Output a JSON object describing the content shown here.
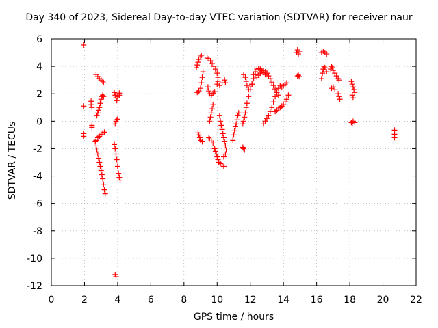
{
  "chart_data": {
    "type": "scatter",
    "title": "Day 340 of 2023, Sidereal Day-to-day VTEC variation (SDTVAR) for receiver naur",
    "xlabel": "GPS time / hours",
    "ylabel": "SDTVAR / TECUs",
    "xlim": [
      0,
      22
    ],
    "ylim": [
      -12,
      6
    ],
    "xticks": [
      0,
      2,
      4,
      6,
      8,
      10,
      12,
      14,
      16,
      18,
      20,
      22
    ],
    "yticks": [
      -12,
      -10,
      -8,
      -6,
      -4,
      -2,
      0,
      2,
      4,
      6
    ],
    "grid": true,
    "marker": "+",
    "color": "#ff0000",
    "series": [
      {
        "name": "SDTVAR",
        "points": [
          [
            1.95,
            5.55
          ],
          [
            1.95,
            1.1
          ],
          [
            1.95,
            -0.9
          ],
          [
            1.95,
            -1.1
          ],
          [
            2.4,
            1.45
          ],
          [
            2.4,
            1.2
          ],
          [
            2.45,
            1.0
          ],
          [
            2.45,
            -0.3
          ],
          [
            2.45,
            -0.45
          ],
          [
            2.7,
            3.4
          ],
          [
            2.8,
            3.25
          ],
          [
            2.9,
            3.1
          ],
          [
            3.0,
            3.0
          ],
          [
            3.1,
            2.9
          ],
          [
            3.15,
            2.8
          ],
          [
            2.75,
            0.4
          ],
          [
            2.8,
            0.6
          ],
          [
            2.85,
            0.8
          ],
          [
            2.9,
            1.0
          ],
          [
            2.95,
            1.3
          ],
          [
            3.0,
            1.6
          ],
          [
            3.05,
            1.8
          ],
          [
            3.1,
            1.9
          ],
          [
            3.15,
            1.8
          ],
          [
            2.65,
            -1.5
          ],
          [
            2.7,
            -1.4
          ],
          [
            2.8,
            -1.2
          ],
          [
            2.9,
            -1.1
          ],
          [
            3.0,
            -0.95
          ],
          [
            3.1,
            -0.85
          ],
          [
            3.2,
            -0.8
          ],
          [
            2.7,
            -1.8
          ],
          [
            2.75,
            -2.1
          ],
          [
            2.8,
            -2.4
          ],
          [
            2.85,
            -2.7
          ],
          [
            2.9,
            -3.0
          ],
          [
            2.95,
            -3.3
          ],
          [
            3.0,
            -3.6
          ],
          [
            3.05,
            -3.9
          ],
          [
            3.1,
            -4.2
          ],
          [
            3.15,
            -4.6
          ],
          [
            3.2,
            -5.0
          ],
          [
            3.25,
            -5.3
          ],
          [
            3.8,
            2.1
          ],
          [
            3.85,
            1.9
          ],
          [
            3.9,
            1.7
          ],
          [
            3.95,
            1.5
          ],
          [
            4.0,
            1.8
          ],
          [
            4.1,
            2.05
          ],
          [
            4.1,
            1.9
          ],
          [
            3.85,
            -0.2
          ],
          [
            3.9,
            0.0
          ],
          [
            3.95,
            0.1
          ],
          [
            4.0,
            0.15
          ],
          [
            3.8,
            -1.7
          ],
          [
            3.85,
            -2.0
          ],
          [
            3.9,
            -2.4
          ],
          [
            3.95,
            -2.8
          ],
          [
            4.0,
            -3.3
          ],
          [
            4.05,
            -3.8
          ],
          [
            4.1,
            -4.1
          ],
          [
            4.15,
            -4.3
          ],
          [
            3.85,
            -11.2
          ],
          [
            3.9,
            -11.35
          ],
          [
            8.75,
            3.9
          ],
          [
            8.8,
            4.1
          ],
          [
            8.85,
            4.3
          ],
          [
            8.9,
            4.5
          ],
          [
            9.0,
            4.7
          ],
          [
            9.05,
            4.8
          ],
          [
            8.8,
            2.1
          ],
          [
            8.9,
            2.2
          ],
          [
            9.0,
            2.4
          ],
          [
            9.05,
            2.8
          ],
          [
            9.1,
            3.2
          ],
          [
            9.15,
            3.6
          ],
          [
            8.85,
            -0.85
          ],
          [
            8.9,
            -1.0
          ],
          [
            8.95,
            -1.2
          ],
          [
            9.0,
            -1.4
          ],
          [
            9.1,
            -1.5
          ],
          [
            9.4,
            4.6
          ],
          [
            9.5,
            4.55
          ],
          [
            9.6,
            4.4
          ],
          [
            9.7,
            4.2
          ],
          [
            9.8,
            4.0
          ],
          [
            9.9,
            3.8
          ],
          [
            10.0,
            3.5
          ],
          [
            10.05,
            3.2
          ],
          [
            9.45,
            2.5
          ],
          [
            9.5,
            2.2
          ],
          [
            9.55,
            2.0
          ],
          [
            9.65,
            1.9
          ],
          [
            9.75,
            2.05
          ],
          [
            9.85,
            2.15
          ],
          [
            9.55,
            0.0
          ],
          [
            9.6,
            0.3
          ],
          [
            9.65,
            0.6
          ],
          [
            9.7,
            0.9
          ],
          [
            9.75,
            1.2
          ],
          [
            9.5,
            -1.2
          ],
          [
            9.55,
            -1.3
          ],
          [
            9.65,
            -1.45
          ],
          [
            9.75,
            -1.6
          ],
          [
            9.85,
            -2.0
          ],
          [
            9.9,
            -2.2
          ],
          [
            9.95,
            -2.4
          ],
          [
            10.0,
            -2.6
          ],
          [
            10.05,
            -2.8
          ],
          [
            10.1,
            -3.0
          ],
          [
            10.2,
            -3.1
          ],
          [
            10.3,
            -3.2
          ],
          [
            10.4,
            -3.3
          ],
          [
            10.0,
            2.7
          ],
          [
            10.05,
            2.9
          ],
          [
            10.15,
            2.6
          ],
          [
            10.3,
            2.8
          ],
          [
            10.45,
            3.0
          ],
          [
            10.5,
            2.8
          ],
          [
            10.15,
            0.4
          ],
          [
            10.2,
            0.0
          ],
          [
            10.25,
            -0.3
          ],
          [
            10.3,
            -0.6
          ],
          [
            10.35,
            -0.9
          ],
          [
            10.4,
            -1.2
          ],
          [
            10.45,
            -1.5
          ],
          [
            10.5,
            -1.8
          ],
          [
            10.55,
            -2.1
          ],
          [
            10.5,
            -2.4
          ],
          [
            10.4,
            -2.6
          ],
          [
            10.95,
            -1.4
          ],
          [
            11.0,
            -1.0
          ],
          [
            11.05,
            -0.7
          ],
          [
            11.1,
            -0.4
          ],
          [
            11.15,
            -0.2
          ],
          [
            11.2,
            0.1
          ],
          [
            11.25,
            0.4
          ],
          [
            11.3,
            0.6
          ],
          [
            11.55,
            -0.2
          ],
          [
            11.6,
            0.0
          ],
          [
            11.65,
            0.3
          ],
          [
            11.7,
            0.6
          ],
          [
            11.75,
            1.0
          ],
          [
            11.8,
            1.3
          ],
          [
            11.9,
            1.8
          ],
          [
            12.0,
            2.3
          ],
          [
            12.1,
            2.7
          ],
          [
            12.2,
            3.1
          ],
          [
            12.3,
            3.4
          ],
          [
            11.55,
            -1.9
          ],
          [
            11.6,
            -2.0
          ],
          [
            11.65,
            -2.1
          ],
          [
            11.6,
            3.4
          ],
          [
            11.7,
            3.2
          ],
          [
            11.75,
            2.9
          ],
          [
            11.8,
            2.6
          ],
          [
            11.9,
            2.3
          ],
          [
            12.0,
            2.5
          ],
          [
            12.1,
            2.7
          ],
          [
            12.2,
            3.4
          ],
          [
            12.3,
            3.6
          ],
          [
            12.4,
            3.8
          ],
          [
            12.5,
            3.85
          ],
          [
            12.6,
            3.8
          ],
          [
            12.7,
            3.7
          ],
          [
            12.8,
            3.55
          ],
          [
            12.9,
            3.4
          ],
          [
            12.4,
            3.2
          ],
          [
            12.5,
            3.35
          ],
          [
            12.6,
            3.5
          ],
          [
            12.7,
            3.6
          ],
          [
            12.8,
            3.7
          ],
          [
            12.9,
            3.6
          ],
          [
            13.0,
            3.5
          ],
          [
            13.1,
            3.3
          ],
          [
            13.2,
            3.1
          ],
          [
            13.3,
            2.85
          ],
          [
            13.4,
            2.6
          ],
          [
            13.5,
            2.35
          ],
          [
            13.6,
            2.1
          ],
          [
            13.7,
            1.9
          ],
          [
            12.8,
            -0.2
          ],
          [
            12.9,
            0.0
          ],
          [
            13.0,
            0.2
          ],
          [
            13.1,
            0.4
          ],
          [
            13.2,
            0.7
          ],
          [
            13.3,
            1.0
          ],
          [
            13.4,
            1.4
          ],
          [
            13.5,
            1.8
          ],
          [
            13.6,
            2.1
          ],
          [
            13.7,
            2.4
          ],
          [
            13.8,
            2.6
          ],
          [
            13.5,
            0.7
          ],
          [
            13.6,
            0.8
          ],
          [
            13.7,
            0.9
          ],
          [
            13.8,
            1.0
          ],
          [
            13.9,
            1.1
          ],
          [
            14.0,
            1.2
          ],
          [
            14.1,
            1.4
          ],
          [
            14.2,
            1.6
          ],
          [
            14.3,
            1.9
          ],
          [
            13.9,
            2.5
          ],
          [
            14.0,
            2.6
          ],
          [
            14.1,
            2.7
          ],
          [
            14.2,
            2.8
          ],
          [
            14.8,
            5.0
          ],
          [
            14.85,
            5.2
          ],
          [
            14.9,
            4.9
          ],
          [
            15.0,
            5.1
          ],
          [
            14.85,
            3.3
          ],
          [
            14.9,
            3.35
          ],
          [
            14.95,
            3.25
          ],
          [
            16.3,
            5.0
          ],
          [
            16.4,
            5.1
          ],
          [
            16.5,
            5.0
          ],
          [
            16.6,
            4.9
          ],
          [
            16.3,
            3.1
          ],
          [
            16.35,
            3.5
          ],
          [
            16.4,
            3.8
          ],
          [
            16.45,
            4.0
          ],
          [
            16.5,
            3.9
          ],
          [
            16.6,
            3.6
          ],
          [
            16.85,
            3.8
          ],
          [
            16.9,
            4.0
          ],
          [
            16.95,
            3.9
          ],
          [
            17.0,
            3.7
          ],
          [
            17.1,
            3.5
          ],
          [
            17.2,
            3.3
          ],
          [
            17.3,
            3.1
          ],
          [
            17.35,
            3.0
          ],
          [
            16.9,
            2.4
          ],
          [
            17.0,
            2.5
          ],
          [
            17.1,
            2.3
          ],
          [
            17.3,
            2.0
          ],
          [
            17.35,
            1.8
          ],
          [
            17.4,
            1.6
          ],
          [
            18.1,
            2.9
          ],
          [
            18.15,
            2.7
          ],
          [
            18.2,
            2.5
          ],
          [
            18.25,
            2.3
          ],
          [
            18.3,
            2.1
          ],
          [
            18.15,
            1.9
          ],
          [
            18.2,
            1.7
          ],
          [
            18.1,
            -0.1
          ],
          [
            18.15,
            -0.2
          ],
          [
            18.2,
            0.0
          ],
          [
            18.3,
            -0.1
          ],
          [
            20.7,
            -0.65
          ],
          [
            20.7,
            -0.95
          ],
          [
            20.7,
            -1.2
          ]
        ]
      }
    ]
  }
}
